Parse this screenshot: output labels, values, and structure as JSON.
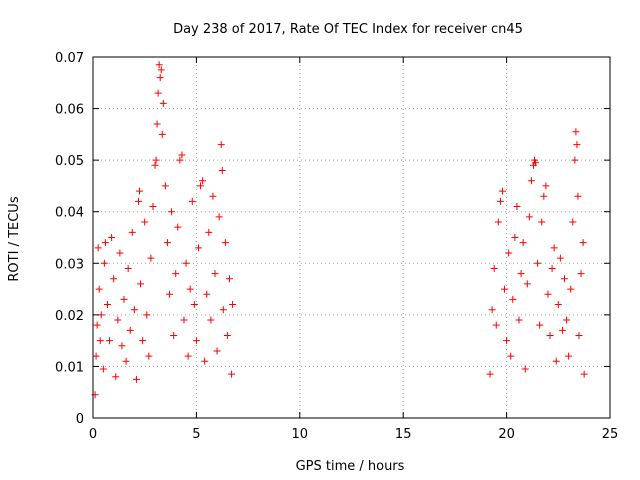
{
  "chart_data": {
    "type": "scatter",
    "title": "Day 238 of 2017, Rate Of TEC Index for receiver cn45",
    "xlabel": "GPS time / hours",
    "ylabel": "ROTI / TECUs",
    "xlim": [
      0,
      25
    ],
    "ylim": [
      0,
      0.07
    ],
    "x_ticks": [
      0,
      5,
      10,
      15,
      20,
      25
    ],
    "x_tick_labels": [
      "0",
      "5",
      "10",
      "15",
      "20",
      "25"
    ],
    "y_ticks": [
      0,
      0.01,
      0.02,
      0.03,
      0.04,
      0.05,
      0.06,
      0.07
    ],
    "y_tick_labels": [
      "0",
      "0.01",
      "0.02",
      "0.03",
      "0.04",
      "0.05",
      "0.06",
      "0.07"
    ],
    "grid": true,
    "marker": "+",
    "color": "#ff0000",
    "series": [
      {
        "name": "ROTI",
        "points": [
          [
            0.1,
            0.0045
          ],
          [
            0.15,
            0.012
          ],
          [
            0.2,
            0.018
          ],
          [
            0.25,
            0.033
          ],
          [
            0.3,
            0.025
          ],
          [
            0.35,
            0.015
          ],
          [
            0.4,
            0.02
          ],
          [
            0.5,
            0.0095
          ],
          [
            0.55,
            0.03
          ],
          [
            0.6,
            0.034
          ],
          [
            0.7,
            0.022
          ],
          [
            0.8,
            0.015
          ],
          [
            0.9,
            0.035
          ],
          [
            1.0,
            0.027
          ],
          [
            1.1,
            0.008
          ],
          [
            1.2,
            0.019
          ],
          [
            1.3,
            0.032
          ],
          [
            1.4,
            0.014
          ],
          [
            1.5,
            0.023
          ],
          [
            1.6,
            0.011
          ],
          [
            1.7,
            0.029
          ],
          [
            1.8,
            0.017
          ],
          [
            1.9,
            0.036
          ],
          [
            2.0,
            0.021
          ],
          [
            2.1,
            0.0075
          ],
          [
            2.2,
            0.042
          ],
          [
            2.25,
            0.044
          ],
          [
            2.3,
            0.026
          ],
          [
            2.4,
            0.015
          ],
          [
            2.5,
            0.038
          ],
          [
            2.6,
            0.02
          ],
          [
            2.7,
            0.012
          ],
          [
            2.8,
            0.031
          ],
          [
            2.9,
            0.041
          ],
          [
            3.0,
            0.049
          ],
          [
            3.05,
            0.05
          ],
          [
            3.1,
            0.057
          ],
          [
            3.15,
            0.063
          ],
          [
            3.2,
            0.0685
          ],
          [
            3.25,
            0.066
          ],
          [
            3.3,
            0.0675
          ],
          [
            3.35,
            0.055
          ],
          [
            3.4,
            0.061
          ],
          [
            3.5,
            0.045
          ],
          [
            3.6,
            0.034
          ],
          [
            3.7,
            0.024
          ],
          [
            3.8,
            0.04
          ],
          [
            3.9,
            0.016
          ],
          [
            4.0,
            0.028
          ],
          [
            4.1,
            0.037
          ],
          [
            4.2,
            0.05
          ],
          [
            4.3,
            0.051
          ],
          [
            4.4,
            0.019
          ],
          [
            4.5,
            0.03
          ],
          [
            4.6,
            0.012
          ],
          [
            4.7,
            0.025
          ],
          [
            4.8,
            0.042
          ],
          [
            4.9,
            0.022
          ],
          [
            5.0,
            0.015
          ],
          [
            5.1,
            0.033
          ],
          [
            5.2,
            0.045
          ],
          [
            5.3,
            0.046
          ],
          [
            5.4,
            0.011
          ],
          [
            5.5,
            0.024
          ],
          [
            5.6,
            0.036
          ],
          [
            5.7,
            0.019
          ],
          [
            5.8,
            0.043
          ],
          [
            5.9,
            0.028
          ],
          [
            6.0,
            0.013
          ],
          [
            6.1,
            0.039
          ],
          [
            6.2,
            0.053
          ],
          [
            6.25,
            0.048
          ],
          [
            6.3,
            0.021
          ],
          [
            6.4,
            0.034
          ],
          [
            6.5,
            0.016
          ],
          [
            6.6,
            0.027
          ],
          [
            6.7,
            0.0085
          ],
          [
            6.75,
            0.022
          ],
          [
            19.2,
            0.0085
          ],
          [
            19.3,
            0.021
          ],
          [
            19.4,
            0.029
          ],
          [
            19.5,
            0.018
          ],
          [
            19.6,
            0.038
          ],
          [
            19.7,
            0.042
          ],
          [
            19.8,
            0.044
          ],
          [
            19.9,
            0.025
          ],
          [
            20.0,
            0.015
          ],
          [
            20.1,
            0.032
          ],
          [
            20.2,
            0.012
          ],
          [
            20.3,
            0.023
          ],
          [
            20.4,
            0.035
          ],
          [
            20.5,
            0.041
          ],
          [
            20.6,
            0.019
          ],
          [
            20.7,
            0.028
          ],
          [
            20.8,
            0.034
          ],
          [
            20.9,
            0.0095
          ],
          [
            21.0,
            0.026
          ],
          [
            21.1,
            0.039
          ],
          [
            21.2,
            0.046
          ],
          [
            21.3,
            0.049
          ],
          [
            21.35,
            0.05
          ],
          [
            21.4,
            0.0495
          ],
          [
            21.5,
            0.03
          ],
          [
            21.6,
            0.018
          ],
          [
            21.7,
            0.038
          ],
          [
            21.8,
            0.043
          ],
          [
            21.9,
            0.045
          ],
          [
            22.0,
            0.024
          ],
          [
            22.1,
            0.016
          ],
          [
            22.2,
            0.029
          ],
          [
            22.3,
            0.033
          ],
          [
            22.4,
            0.011
          ],
          [
            22.5,
            0.022
          ],
          [
            22.6,
            0.031
          ],
          [
            22.7,
            0.017
          ],
          [
            22.8,
            0.027
          ],
          [
            22.9,
            0.019
          ],
          [
            23.0,
            0.012
          ],
          [
            23.1,
            0.025
          ],
          [
            23.2,
            0.038
          ],
          [
            23.3,
            0.05
          ],
          [
            23.35,
            0.0555
          ],
          [
            23.4,
            0.053
          ],
          [
            23.45,
            0.043
          ],
          [
            23.5,
            0.016
          ],
          [
            23.6,
            0.028
          ],
          [
            23.7,
            0.034
          ],
          [
            23.75,
            0.0085
          ]
        ]
      }
    ]
  }
}
